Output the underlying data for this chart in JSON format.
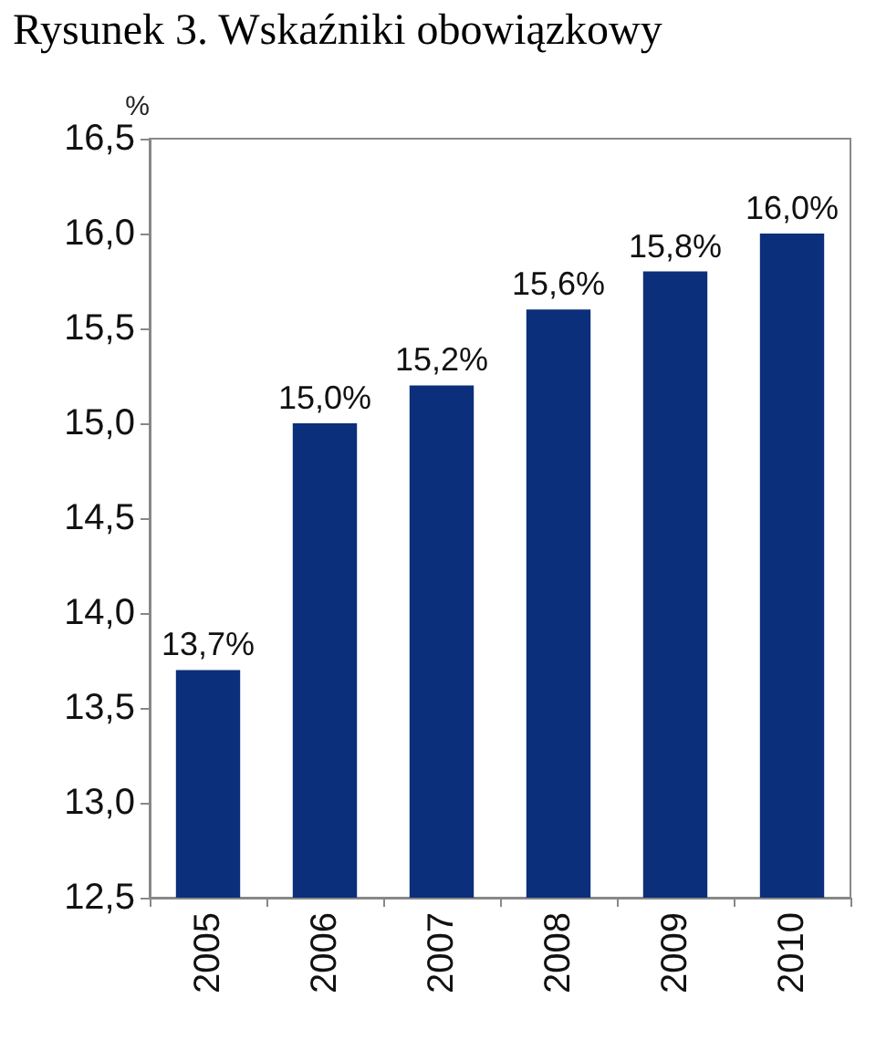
{
  "chart_data": {
    "type": "bar",
    "title": "Rysunek 3. Wskaźniki obowiązkowy",
    "ylabel": "%",
    "categories": [
      "2005",
      "2006",
      "2007",
      "2008",
      "2009",
      "2010"
    ],
    "values": [
      13.7,
      15.0,
      15.2,
      15.6,
      15.8,
      16.0
    ],
    "value_labels": [
      "13,7%",
      "15,0%",
      "15,2%",
      "15,6%",
      "15,8%",
      "16,0%"
    ],
    "color": "#0b2f7a",
    "ylim": [
      12.5,
      16.5
    ],
    "yticks": [
      {
        "value": 12.5,
        "label": "12,5"
      },
      {
        "value": 13.0,
        "label": "13,0"
      },
      {
        "value": 13.5,
        "label": "13,5"
      },
      {
        "value": 14.0,
        "label": "14,0"
      },
      {
        "value": 14.5,
        "label": "14,5"
      },
      {
        "value": 15.0,
        "label": "15,0"
      },
      {
        "value": 15.5,
        "label": "15,5"
      },
      {
        "value": 16.0,
        "label": "16,0"
      },
      {
        "value": 16.5,
        "label": "16,5"
      }
    ],
    "grid": false
  }
}
